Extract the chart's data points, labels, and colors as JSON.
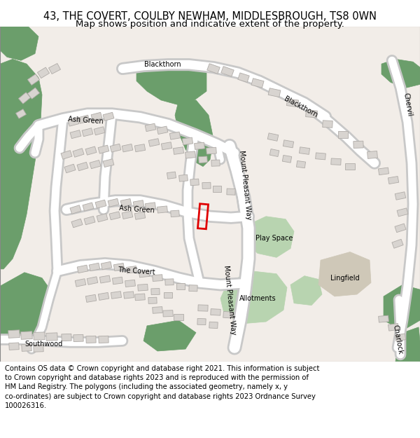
{
  "title_line1": "43, THE COVERT, COULBY NEWHAM, MIDDLESBROUGH, TS8 0WN",
  "title_line2": "Map shows position and indicative extent of the property.",
  "footer": "Contains OS data © Crown copyright and database right 2021. This information is subject to Crown copyright and database rights 2023 and is reproduced with the permission of HM Land Registry. The polygons (including the associated geometry, namely x, y co-ordinates) are subject to Crown copyright and database rights 2023 Ordnance Survey 100026316.",
  "bg_color": "#f2ede8",
  "road_color": "#ffffff",
  "road_edge_color": "#c8c8c8",
  "building_color": "#d8d4d0",
  "building_edge_color": "#b0aca8",
  "green_dark": "#6b9e6b",
  "green_light": "#b8d4b0",
  "lingfield_color": "#cfc8b8",
  "plot_color": "#e00000",
  "title_fontsize": 10.5,
  "subtitle_fontsize": 9.5,
  "footer_fontsize": 7.2,
  "label_fontsize": 7
}
